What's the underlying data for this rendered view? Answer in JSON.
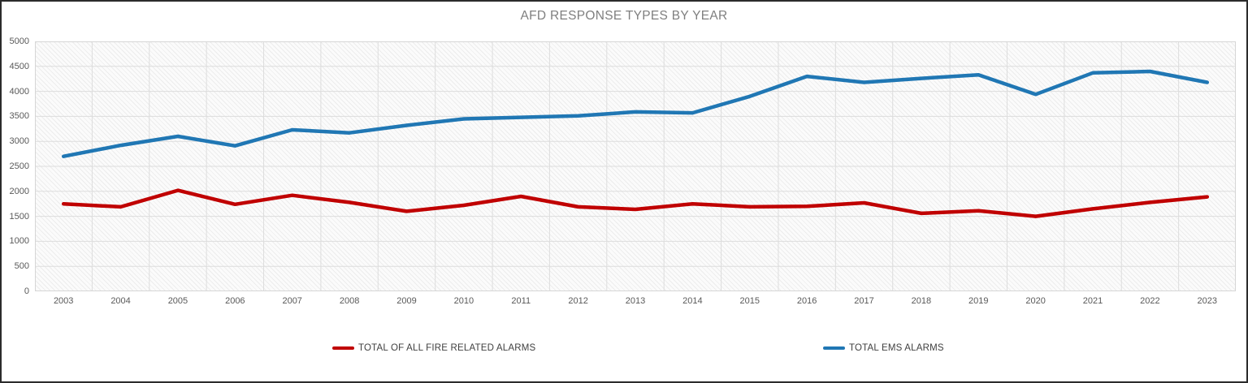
{
  "window": {
    "background": "#ffffff",
    "border_color": "#2b2b2b"
  },
  "colors": {
    "title_text": "#7f7f7f",
    "axis_text": "#595959",
    "legend_text": "#3f3f3f",
    "gridline": "#dddddd",
    "plot_border": "#d6d6d6",
    "fire_series": "#c00000",
    "ems_series": "#2077b4"
  },
  "chart_data": {
    "type": "line",
    "title": "AFD RESPONSE TYPES BY YEAR",
    "xlabel": "",
    "ylabel": "",
    "categories": [
      "2003",
      "2004",
      "2005",
      "2006",
      "2007",
      "2008",
      "2009",
      "2010",
      "2011",
      "2012",
      "2013",
      "2014",
      "2015",
      "2016",
      "2017",
      "2018",
      "2019",
      "2020",
      "2021",
      "2022",
      "2023"
    ],
    "series": [
      {
        "name": "TOTAL OF ALL FIRE RELATED ALARMS",
        "color": "#c00000",
        "values": [
          1750,
          1690,
          2020,
          1740,
          1920,
          1780,
          1600,
          1720,
          1900,
          1690,
          1640,
          1750,
          1690,
          1700,
          1770,
          1560,
          1610,
          1500,
          1650,
          1780,
          1890
        ]
      },
      {
        "name": "TOTAL EMS ALARMS",
        "color": "#2077b4",
        "values": [
          2700,
          2920,
          3100,
          2910,
          3230,
          3170,
          3320,
          3450,
          3480,
          3510,
          3590,
          3570,
          3900,
          4300,
          4180,
          4260,
          4330,
          3940,
          4370,
          4400,
          4180
        ]
      }
    ],
    "ylim": [
      0,
      5000
    ],
    "ytick_step": 500,
    "grid": true,
    "plot_background": "light-diagonal-hatch",
    "legend_position": "bottom"
  }
}
